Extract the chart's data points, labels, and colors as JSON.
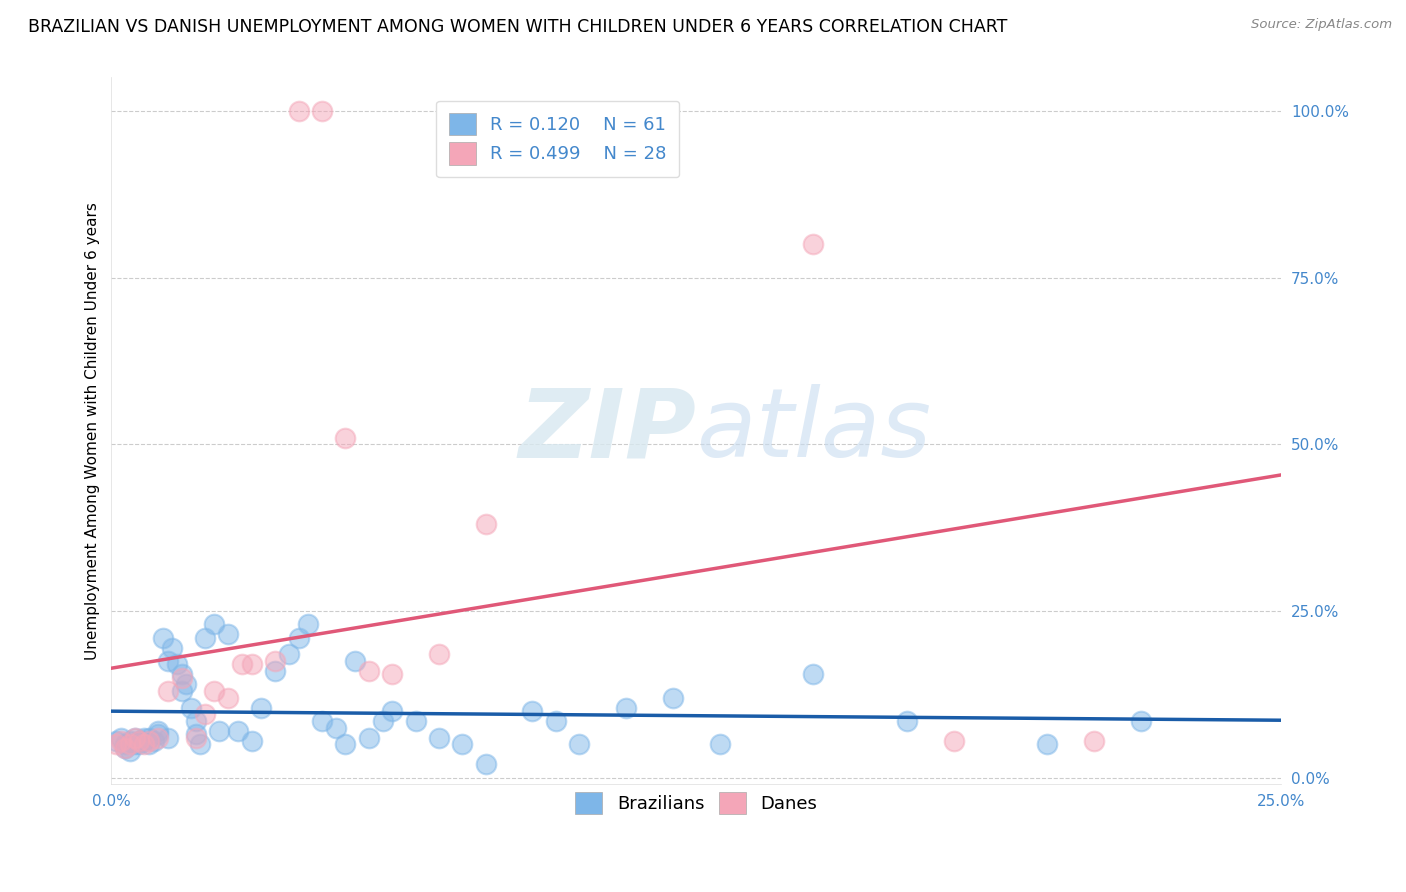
{
  "title": "BRAZILIAN VS DANISH UNEMPLOYMENT AMONG WOMEN WITH CHILDREN UNDER 6 YEARS CORRELATION CHART",
  "source": "Source: ZipAtlas.com",
  "ylabel": "Unemployment Among Women with Children Under 6 years",
  "xlim": [
    0,
    0.25
  ],
  "ylim": [
    -0.01,
    1.05
  ],
  "xticks": [
    0.0,
    0.25
  ],
  "yticks": [
    0.0,
    0.25,
    0.5,
    0.75,
    1.0
  ],
  "xticklabels": [
    "0.0%",
    "25.0%"
  ],
  "yticklabels": [
    "0.0%",
    "25.0%",
    "50.0%",
    "75.0%",
    "100.0%"
  ],
  "brazil_color": "#7EB6E8",
  "danes_color": "#F4A6B8",
  "brazil_line_color": "#1A5CA8",
  "danes_line_color": "#E05878",
  "brazil_R": 0.12,
  "brazil_N": 61,
  "danes_R": 0.499,
  "danes_N": 28,
  "brazil_x": [
    0.001,
    0.002,
    0.003,
    0.003,
    0.004,
    0.004,
    0.005,
    0.005,
    0.006,
    0.006,
    0.007,
    0.007,
    0.008,
    0.008,
    0.009,
    0.01,
    0.01,
    0.011,
    0.012,
    0.012,
    0.013,
    0.014,
    0.015,
    0.015,
    0.016,
    0.017,
    0.018,
    0.018,
    0.019,
    0.02,
    0.022,
    0.023,
    0.025,
    0.027,
    0.03,
    0.032,
    0.035,
    0.038,
    0.04,
    0.042,
    0.045,
    0.048,
    0.05,
    0.052,
    0.055,
    0.058,
    0.06,
    0.065,
    0.07,
    0.075,
    0.08,
    0.09,
    0.095,
    0.1,
    0.11,
    0.12,
    0.13,
    0.15,
    0.17,
    0.2,
    0.22
  ],
  "brazil_y": [
    0.055,
    0.06,
    0.045,
    0.05,
    0.04,
    0.055,
    0.06,
    0.05,
    0.055,
    0.05,
    0.06,
    0.055,
    0.05,
    0.06,
    0.055,
    0.065,
    0.07,
    0.21,
    0.175,
    0.06,
    0.195,
    0.17,
    0.13,
    0.155,
    0.14,
    0.105,
    0.065,
    0.085,
    0.05,
    0.21,
    0.23,
    0.07,
    0.215,
    0.07,
    0.055,
    0.105,
    0.16,
    0.185,
    0.21,
    0.23,
    0.085,
    0.075,
    0.05,
    0.175,
    0.06,
    0.085,
    0.1,
    0.085,
    0.06,
    0.05,
    0.02,
    0.1,
    0.085,
    0.05,
    0.105,
    0.12,
    0.05,
    0.155,
    0.085,
    0.05,
    0.085
  ],
  "danes_x": [
    0.001,
    0.002,
    0.003,
    0.004,
    0.005,
    0.006,
    0.007,
    0.008,
    0.01,
    0.012,
    0.015,
    0.018,
    0.02,
    0.022,
    0.025,
    0.028,
    0.03,
    0.035,
    0.04,
    0.045,
    0.05,
    0.055,
    0.06,
    0.07,
    0.08,
    0.15,
    0.18,
    0.21
  ],
  "danes_y": [
    0.05,
    0.055,
    0.045,
    0.05,
    0.06,
    0.055,
    0.05,
    0.055,
    0.06,
    0.13,
    0.15,
    0.06,
    0.095,
    0.13,
    0.12,
    0.17,
    0.17,
    0.175,
    1.0,
    1.0,
    0.51,
    0.16,
    0.155,
    0.185,
    0.38,
    0.8,
    0.055,
    0.055
  ],
  "watermark_zip": "ZIP",
  "watermark_atlas": "atlas",
  "background_color": "#FFFFFF",
  "grid_color": "#CCCCCC",
  "title_fontsize": 12.5,
  "label_fontsize": 11,
  "tick_fontsize": 11,
  "legend_fontsize": 13
}
